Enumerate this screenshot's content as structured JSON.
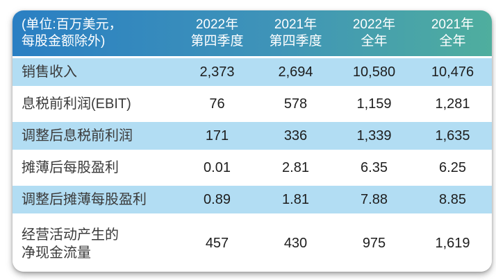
{
  "header": {
    "unit_note_line1": "(单位:百万美元，",
    "unit_note_line2": "每股金额除外)",
    "columns": [
      {
        "line1": "2022年",
        "line2": "第四季度"
      },
      {
        "line1": "2021年",
        "line2": "第四季度"
      },
      {
        "line1": "2022年",
        "line2": "全年"
      },
      {
        "line1": "2021年",
        "line2": "全年"
      }
    ]
  },
  "rows": [
    {
      "label": "销售收入",
      "values": [
        "2,373",
        "2,694",
        "10,580",
        "10,476"
      ]
    },
    {
      "label": "息税前利润(EBIT)",
      "values": [
        "76",
        "578",
        "1,159",
        "1,281"
      ]
    },
    {
      "label": "调整后息税前利润",
      "values": [
        "171",
        "336",
        "1,339",
        "1,635"
      ]
    },
    {
      "label": "摊薄后每股盈利",
      "values": [
        "0.01",
        "2.81",
        "6.35",
        "6.25"
      ]
    },
    {
      "label": "调整后摊薄每股盈利",
      "values": [
        "0.89",
        "1.81",
        "7.88",
        "8.85"
      ]
    },
    {
      "label": "经营活动产生的",
      "label_line2": "净现金流量",
      "values": [
        "457",
        "430",
        "975",
        "1,619"
      ]
    }
  ],
  "colors": {
    "header_gradient_start": "#2a7fc3",
    "header_gradient_end": "#4fae9e",
    "row_highlight": "#b2ddf3",
    "header_text": "#ffffff",
    "body_text": "#2d2d2d"
  },
  "chart_data": {
    "type": "table",
    "title": "",
    "columns": [
      "(单位:百万美元，每股金额除外)",
      "2022年第四季度",
      "2021年第四季度",
      "2022年全年",
      "2021年全年"
    ],
    "rows": [
      [
        "销售收入",
        "2,373",
        "2,694",
        "10,580",
        "10,476"
      ],
      [
        "息税前利润(EBIT)",
        "76",
        "578",
        "1,159",
        "1,281"
      ],
      [
        "调整后息税前利润",
        "171",
        "336",
        "1,339",
        "1,635"
      ],
      [
        "摊薄后每股盈利",
        "0.01",
        "2.81",
        "6.35",
        "6.25"
      ],
      [
        "调整后摊薄每股盈利",
        "0.89",
        "1.81",
        "7.88",
        "8.85"
      ],
      [
        "经营活动产生的净现金流量",
        "457",
        "430",
        "975",
        "1,619"
      ]
    ]
  }
}
